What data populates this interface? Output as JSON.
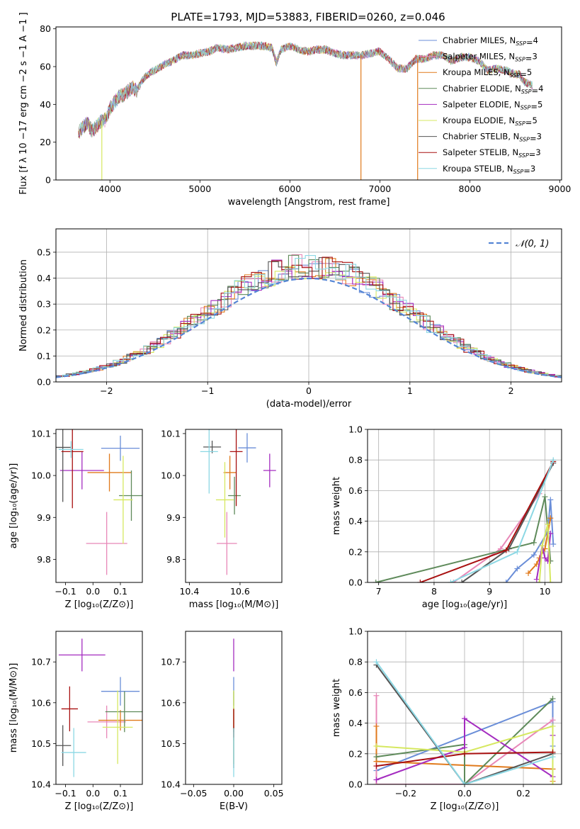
{
  "figure": {
    "title": "PLATE=1793, MJD=53883, FIBERID=0260, z=0.046"
  },
  "legend": [
    {
      "model": "Chabrier MILES",
      "nssp": "4",
      "color": "#6a8ed8"
    },
    {
      "model": "Salpeter MILES",
      "nssp": "3",
      "color": "#e888b8"
    },
    {
      "model": "Kroupa MILES",
      "nssp": "5",
      "color": "#e07a1c"
    },
    {
      "model": "Chabrier ELODIE",
      "nssp": "4",
      "color": "#5e8a5a"
    },
    {
      "model": "Salpeter ELODIE",
      "nssp": "5",
      "color": "#a42cc0"
    },
    {
      "model": "Kroupa ELODIE",
      "nssp": "5",
      "color": "#d6e860"
    },
    {
      "model": "Chabrier STELIB",
      "nssp": "3",
      "color": "#555555"
    },
    {
      "model": "Salpeter STELIB",
      "nssp": "3",
      "color": "#a81010"
    },
    {
      "model": "Kroupa STELIB",
      "nssp": "3",
      "color": "#8cd8e4"
    }
  ],
  "legend_suffix": "SSP",
  "chart_data": [
    {
      "id": "spectrum",
      "type": "line",
      "xlabel": "wavelength [Angstrom, rest frame]",
      "ylabel": "Flux [f λ 10 −17 erg cm −2 s −1 A −1 ]",
      "xlim": [
        3400,
        9020
      ],
      "ylim": [
        0,
        81
      ],
      "xticks": [
        "4000",
        "5000",
        "6000",
        "7000",
        "8000",
        "9000"
      ],
      "yticks": [
        "0",
        "20",
        "40",
        "60",
        "80"
      ],
      "spectrum_x": [
        3650,
        3700,
        3750,
        3800,
        3850,
        3900,
        3950,
        4000,
        4050,
        4100,
        4150,
        4200,
        4250,
        4300,
        4350,
        4400,
        4450,
        4500,
        4600,
        4700,
        4800,
        4900,
        5000,
        5100,
        5200,
        5300,
        5400,
        5500,
        5600,
        5700,
        5800,
        5850,
        5900,
        6000,
        6100,
        6200,
        6300,
        6400,
        6500,
        6600,
        6700,
        6800,
        6900,
        7000,
        7100,
        7200,
        7300,
        7400,
        7500,
        7600,
        7700,
        7800,
        7900,
        8000,
        8100,
        8200,
        8300,
        8400,
        8500,
        8550,
        8600,
        8700
      ],
      "spectrum_y": [
        25,
        28,
        30,
        26,
        28,
        31,
        32,
        38,
        41,
        44,
        45,
        47,
        49,
        47,
        52,
        55,
        57,
        58,
        61,
        63,
        66,
        66,
        67,
        68,
        70,
        69,
        70,
        71,
        71,
        71,
        70,
        62,
        69,
        71,
        69,
        68,
        69,
        69,
        67,
        66,
        66,
        66,
        67,
        68,
        64,
        59,
        59,
        64,
        64,
        66,
        66,
        63,
        65,
        65,
        63,
        58,
        59,
        58,
        56,
        56,
        52,
        50
      ],
      "spike_x": [
        3910,
        6790,
        7420
      ],
      "spike_colors": [
        "#d6e860",
        "#e07a1c",
        "#e07a1c"
      ]
    },
    {
      "id": "residual-hist",
      "type": "step",
      "xlabel": "(data-model)/error",
      "ylabel": "Normed distribution",
      "xlim": [
        -2.5,
        2.5
      ],
      "ylim": [
        0,
        0.59
      ],
      "xticks": [
        "−2",
        "−1",
        "0",
        "1",
        "2"
      ],
      "yticks": [
        "0.0",
        "0.1",
        "0.2",
        "0.3",
        "0.4",
        "0.5"
      ],
      "reference_label": "𝒩(0, 1)",
      "reference_color": "#5585d5",
      "bin_width": 0.1
    },
    {
      "id": "age-vs-Z",
      "type": "errorbar",
      "xlabel": "Z [log₁₀(Z/Z⊙)]",
      "ylabel": "age [log₁₀(age/yr)]",
      "xlim": [
        -0.135,
        0.18
      ],
      "ylim": [
        9.745,
        10.11
      ],
      "xticks": [
        "−0.1",
        "0.0",
        "0.1"
      ],
      "yticks": [
        "9.8",
        "9.9",
        "10.0",
        "10.1"
      ],
      "points": [
        {
          "x": 0.1,
          "xerr": 0.07,
          "y": 10.065,
          "yerr": 0.03
        },
        {
          "x": 0.05,
          "xerr": 0.075,
          "y": 9.838,
          "yerr": 0.075
        },
        {
          "x": 0.06,
          "xerr": 0.08,
          "y": 10.007,
          "yerr": 0.045
        },
        {
          "x": 0.14,
          "xerr": 0.045,
          "y": 9.952,
          "yerr": 0.06
        },
        {
          "x": -0.04,
          "xerr": 0.08,
          "y": 10.012,
          "yerr": 0.045
        },
        {
          "x": 0.11,
          "xerr": 0.035,
          "y": 9.942,
          "yerr": 0.105
        },
        {
          "x": -0.11,
          "xerr": 0.03,
          "y": 10.067,
          "yerr": 0.13
        },
        {
          "x": -0.075,
          "xerr": 0.04,
          "y": 10.057,
          "yerr": 0.135
        },
        {
          "x": -0.08,
          "xerr": 0.045,
          "y": 10.062,
          "yerr": 0.02
        }
      ]
    },
    {
      "id": "age-vs-mass",
      "type": "errorbar",
      "xlabel": "mass [log₁₀(M/M⊙)]",
      "ylabel": "",
      "xlim": [
        10.385,
        10.765
      ],
      "ylim": [
        9.745,
        10.11
      ],
      "xticks": [
        "10.4",
        "10.6"
      ],
      "yticks": [
        "9.8",
        "9.9",
        "10.0",
        "10.1"
      ],
      "points": [
        {
          "x": 10.628,
          "xerr": 0.035,
          "y": 10.066,
          "yerr": 0.035
        },
        {
          "x": 10.548,
          "xerr": 0.04,
          "y": 9.838,
          "yerr": 0.075
        },
        {
          "x": 10.56,
          "xerr": 0.025,
          "y": 10.007,
          "yerr": 0.04
        },
        {
          "x": 10.578,
          "xerr": 0.025,
          "y": 9.952,
          "yerr": 0.045
        },
        {
          "x": 10.717,
          "xerr": 0.025,
          "y": 10.012,
          "yerr": 0.04
        },
        {
          "x": 10.54,
          "xerr": 0.035,
          "y": 9.942,
          "yerr": 0.09
        },
        {
          "x": 10.49,
          "xerr": 0.035,
          "y": 10.068,
          "yerr": 0.015
        },
        {
          "x": 10.585,
          "xerr": 0.025,
          "y": 10.057,
          "yerr": 0.13
        },
        {
          "x": 10.478,
          "xerr": 0.035,
          "y": 10.057,
          "yerr": 0.1
        }
      ]
    },
    {
      "id": "mass-weight-vs-age",
      "type": "line",
      "xlabel": "age [log₁₀(age/yr)]",
      "ylabel": "mass weight",
      "xlim": [
        6.8,
        10.3
      ],
      "ylim": [
        0,
        1.0
      ],
      "xticks": [
        "7",
        "8",
        "9",
        "10"
      ],
      "yticks": [
        "0.0",
        "0.2",
        "0.4",
        "0.6",
        "0.8",
        "1.0"
      ],
      "series": [
        {
          "x": [
            9.3,
            9.5,
            9.8,
            10.05,
            10.1,
            10.15
          ],
          "y": [
            0.0,
            0.09,
            0.18,
            0.33,
            0.54,
            0.25
          ]
        },
        {
          "x": [
            8.35,
            9.2,
            9.9
          ],
          "y": [
            0.0,
            0.22,
            0.58
          ]
        },
        {
          "x": [
            9.7,
            9.85,
            9.9,
            10.0,
            10.1
          ],
          "y": [
            0.06,
            0.12,
            0.16,
            0.22,
            0.42
          ]
        },
        {
          "x": [
            6.95,
            9.8,
            10.0,
            10.1
          ],
          "y": [
            0.0,
            0.26,
            0.56,
            0.14
          ]
        },
        {
          "x": [
            9.85,
            9.95,
            10.0,
            10.05,
            10.1
          ],
          "y": [
            0.02,
            0.24,
            0.16,
            0.14,
            0.32
          ]
        },
        {
          "x": [
            9.9,
            9.95,
            10.05,
            10.1
          ],
          "y": [
            0.0,
            0.24,
            0.38,
            0.0
          ]
        },
        {
          "x": [
            8.5,
            9.35,
            10.15
          ],
          "y": [
            0.0,
            0.22,
            0.78
          ]
        },
        {
          "x": [
            7.75,
            9.3,
            10.15
          ],
          "y": [
            0.0,
            0.21,
            0.79
          ]
        },
        {
          "x": [
            8.3,
            9.5,
            10.15
          ],
          "y": [
            0.0,
            0.2,
            0.8
          ]
        }
      ]
    },
    {
      "id": "mass-vs-Z",
      "type": "errorbar",
      "xlabel": "Z [log₁₀(Z/Z⊙)]",
      "ylabel": "mass [log₁₀(M/M⊙)]",
      "xlim": [
        -0.135,
        0.18
      ],
      "ylim": [
        10.4,
        10.775
      ],
      "xticks": [
        "−0.1",
        "0.0",
        "0.1"
      ],
      "yticks": [
        "10.4",
        "10.5",
        "10.6",
        "10.7"
      ],
      "points": [
        {
          "x": 0.1,
          "xerr": 0.07,
          "y": 10.628,
          "yerr": 0.035
        },
        {
          "x": 0.05,
          "xerr": 0.07,
          "y": 10.553,
          "yerr": 0.04
        },
        {
          "x": 0.1,
          "xerr": 0.08,
          "y": 10.557,
          "yerr": 0.025
        },
        {
          "x": 0.115,
          "xerr": 0.07,
          "y": 10.578,
          "yerr": 0.05
        },
        {
          "x": -0.04,
          "xerr": 0.085,
          "y": 10.717,
          "yerr": 0.04
        },
        {
          "x": 0.09,
          "xerr": 0.055,
          "y": 10.54,
          "yerr": 0.09
        },
        {
          "x": -0.11,
          "xerr": 0.03,
          "y": 10.495,
          "yerr": 0.05
        },
        {
          "x": -0.085,
          "xerr": 0.03,
          "y": 10.585,
          "yerr": 0.055
        },
        {
          "x": -0.07,
          "xerr": 0.045,
          "y": 10.478,
          "yerr": 0.06
        }
      ]
    },
    {
      "id": "mass-vs-ebv",
      "type": "errorbar",
      "xlabel": "E(B-V)",
      "ylabel": "",
      "xlim": [
        -0.06,
        0.06
      ],
      "ylim": [
        10.4,
        10.775
      ],
      "xticks": [
        "−0.05",
        "0.00",
        "0.05"
      ],
      "yticks": [
        "10.4",
        "10.5",
        "10.6",
        "10.7"
      ],
      "points": [
        {
          "x": 0,
          "xerr": 0,
          "y": 10.628,
          "yerr": 0.035
        },
        {
          "x": 0,
          "xerr": 0,
          "y": 10.548,
          "yerr": 0.04
        },
        {
          "x": 0,
          "xerr": 0,
          "y": 10.56,
          "yerr": 0.025
        },
        {
          "x": 0,
          "xerr": 0,
          "y": 10.578,
          "yerr": 0.05
        },
        {
          "x": 0,
          "xerr": 0,
          "y": 10.717,
          "yerr": 0.04
        },
        {
          "x": 0,
          "xerr": 0,
          "y": 10.54,
          "yerr": 0.09
        },
        {
          "x": 0,
          "xerr": 0,
          "y": 10.49,
          "yerr": 0.05
        },
        {
          "x": 0,
          "xerr": 0,
          "y": 10.55,
          "yerr": 0.035
        },
        {
          "x": 0,
          "xerr": 0,
          "y": 10.478,
          "yerr": 0.06
        }
      ]
    },
    {
      "id": "mass-weight-vs-Z",
      "type": "line",
      "xlabel": "Z [log₁₀(Z/Z⊙)]",
      "ylabel": "mass weight",
      "xlim": [
        -0.33,
        0.33
      ],
      "ylim": [
        0,
        1.0
      ],
      "xticks": [
        "−0.2",
        "0.0",
        "0.2"
      ],
      "yticks": [
        "0.0",
        "0.2",
        "0.4",
        "0.6",
        "0.8",
        "1.0"
      ],
      "series": [
        {
          "x": [
            -0.3,
            0.3,
            0.3
          ],
          "y": [
            0.09,
            0.54,
            0.25
          ]
        },
        {
          "x": [
            -0.3,
            -0.3,
            0.0,
            0.3
          ],
          "y": [
            0.58,
            0.0,
            0.0,
            0.42
          ]
        },
        {
          "x": [
            -0.3,
            -0.3,
            0.3,
            0.3
          ],
          "y": [
            0.38,
            0.15,
            0.1,
            0.02
          ]
        },
        {
          "x": [
            -0.3,
            0.0,
            0.0,
            0.3
          ],
          "y": [
            0.18,
            0.26,
            0.0,
            0.56
          ]
        },
        {
          "x": [
            -0.3,
            0.0,
            0.0,
            0.3,
            0.3
          ],
          "y": [
            0.03,
            0.24,
            0.43,
            0.05,
            0.32
          ]
        },
        {
          "x": [
            -0.3,
            0.0,
            0.3,
            0.3
          ],
          "y": [
            0.25,
            0.21,
            0.38,
            0.0
          ]
        },
        {
          "x": [
            -0.3,
            0.0,
            0.3
          ],
          "y": [
            0.78,
            0.0,
            0.2
          ]
        },
        {
          "x": [
            -0.3,
            0.0,
            0.3
          ],
          "y": [
            0.12,
            0.2,
            0.21
          ]
        },
        {
          "x": [
            -0.3,
            0.0,
            0.3
          ],
          "y": [
            0.8,
            0.0,
            0.18
          ]
        }
      ]
    }
  ]
}
